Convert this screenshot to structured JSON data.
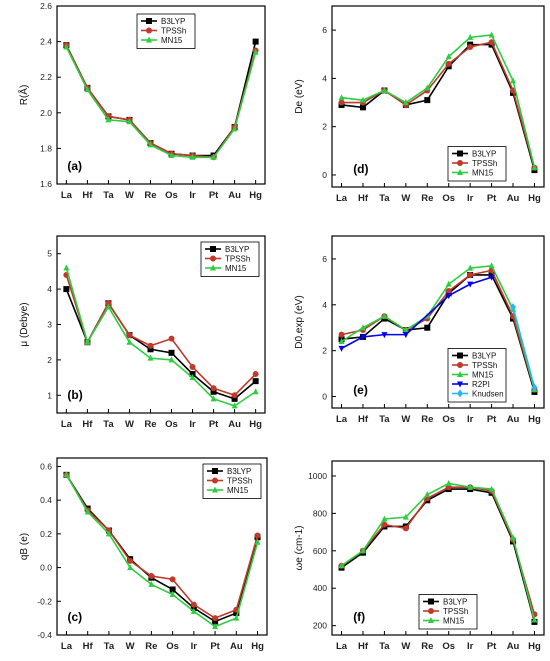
{
  "chart_data": [
    {
      "panel": "(a)",
      "type": "line",
      "categories": [
        "La",
        "Hf",
        "Ta",
        "W",
        "Re",
        "Os",
        "Ir",
        "Pt",
        "Au",
        "Hg"
      ],
      "ylabel": "R(Å)",
      "ylim": [
        1.6,
        2.6
      ],
      "yticks": [
        "1.6",
        "1.8",
        "2.0",
        "2.2",
        "2.4",
        "2.6"
      ],
      "legend_position": "top-left",
      "series": [
        {
          "name": "B3LYP",
          "values": [
            2.38,
            2.14,
            1.98,
            1.96,
            1.83,
            1.77,
            1.76,
            1.76,
            1.92,
            2.4
          ]
        },
        {
          "name": "TPSSh",
          "values": [
            2.38,
            2.14,
            1.98,
            1.96,
            1.83,
            1.77,
            1.76,
            1.75,
            1.92,
            2.35
          ]
        },
        {
          "name": "MN15",
          "values": [
            2.37,
            2.13,
            1.96,
            1.95,
            1.82,
            1.76,
            1.75,
            1.75,
            1.91,
            2.34
          ]
        }
      ]
    },
    {
      "panel": "(d)",
      "type": "line",
      "categories": [
        "La",
        "Hf",
        "Ta",
        "W",
        "Re",
        "Os",
        "Ir",
        "Pt",
        "Au",
        "Hg"
      ],
      "ylabel": "De (eV)",
      "ylim": [
        -0.5,
        7
      ],
      "yticks": [
        "0",
        "2",
        "4",
        "6"
      ],
      "legend_position": "bottom-right",
      "series": [
        {
          "name": "B3LYP",
          "values": [
            2.9,
            2.8,
            3.5,
            2.9,
            3.1,
            4.5,
            5.4,
            5.4,
            3.4,
            0.2
          ]
        },
        {
          "name": "TPSSh",
          "values": [
            3.0,
            3.0,
            3.5,
            2.9,
            3.5,
            4.6,
            5.3,
            5.5,
            3.5,
            0.3
          ]
        },
        {
          "name": "MN15",
          "values": [
            3.2,
            3.1,
            3.5,
            3.0,
            3.6,
            4.9,
            5.7,
            5.8,
            3.9,
            0.3
          ]
        }
      ]
    },
    {
      "panel": "(b)",
      "type": "line",
      "categories": [
        "La",
        "Hf",
        "Ta",
        "W",
        "Re",
        "Os",
        "Ir",
        "Pt",
        "Au",
        "Hg"
      ],
      "ylabel": "μ (Debye)",
      "ylim": [
        0.5,
        5.5
      ],
      "yticks": [
        "1",
        "2",
        "3",
        "4",
        "5"
      ],
      "legend_position": "top-right",
      "series": [
        {
          "name": "B3LYP",
          "values": [
            4.0,
            2.5,
            3.6,
            2.7,
            2.3,
            2.2,
            1.6,
            1.1,
            0.9,
            1.4
          ]
        },
        {
          "name": "TPSSh",
          "values": [
            4.4,
            2.5,
            3.6,
            2.7,
            2.4,
            2.6,
            1.8,
            1.2,
            1.0,
            1.6
          ]
        },
        {
          "name": "MN15",
          "values": [
            4.6,
            2.5,
            3.5,
            2.5,
            2.05,
            2.0,
            1.5,
            0.9,
            0.7,
            1.1
          ]
        }
      ]
    },
    {
      "panel": "(e)",
      "type": "line",
      "categories": [
        "La",
        "Hf",
        "Ta",
        "W",
        "Re",
        "Os",
        "Ir",
        "Pt",
        "Au",
        "Hg"
      ],
      "ylabel": "D0,exp (eV)",
      "ylim": [
        -0.5,
        7
      ],
      "yticks": [
        "0",
        "2",
        "4",
        "6"
      ],
      "legend_position": "bottom-right",
      "series": [
        {
          "name": "B3LYP",
          "values": [
            2.5,
            2.6,
            3.4,
            2.9,
            3.0,
            4.5,
            5.3,
            5.3,
            3.4,
            0.2
          ]
        },
        {
          "name": "TPSSh",
          "values": [
            2.7,
            2.9,
            3.5,
            2.9,
            3.4,
            4.6,
            5.3,
            5.5,
            3.5,
            0.3
          ]
        },
        {
          "name": "MN15",
          "values": [
            2.4,
            3.0,
            3.5,
            2.9,
            3.5,
            4.9,
            5.6,
            5.7,
            3.8,
            0.3
          ]
        },
        {
          "name": "R2PI",
          "values": [
            2.1,
            2.6,
            2.7,
            2.7,
            null,
            4.4,
            4.9,
            5.2,
            null,
            null
          ]
        },
        {
          "name": "Knudsen",
          "values": [
            null,
            null,
            null,
            null,
            null,
            null,
            null,
            null,
            3.9,
            0.4
          ]
        }
      ]
    },
    {
      "panel": "(c)",
      "type": "line",
      "categories": [
        "La",
        "Hf",
        "Ta",
        "W",
        "Re",
        "Os",
        "Ir",
        "Pt",
        "Au",
        "Hg"
      ],
      "ylabel": "qB (e)",
      "ylim": [
        -0.4,
        0.65
      ],
      "yticks": [
        "-0.4",
        "-0.2",
        "0.0",
        "0.2",
        "0.4",
        "0.6"
      ],
      "legend_position": "top-right",
      "series": [
        {
          "name": "B3LYP",
          "values": [
            0.55,
            0.35,
            0.22,
            0.05,
            -0.06,
            -0.13,
            -0.24,
            -0.32,
            -0.27,
            0.18
          ]
        },
        {
          "name": "TPSSh",
          "values": [
            0.55,
            0.34,
            0.22,
            0.04,
            -0.05,
            -0.07,
            -0.22,
            -0.3,
            -0.25,
            0.19
          ]
        },
        {
          "name": "MN15",
          "values": [
            0.55,
            0.33,
            0.2,
            0.0,
            -0.1,
            -0.16,
            -0.26,
            -0.35,
            -0.3,
            0.15
          ]
        }
      ]
    },
    {
      "panel": "(f)",
      "type": "line",
      "categories": [
        "La",
        "Hf",
        "Ta",
        "W",
        "Re",
        "Os",
        "Ir",
        "Pt",
        "Au",
        "Hg"
      ],
      "ylabel": "ωe (cm-1)",
      "ylim": [
        150,
        1080
      ],
      "yticks": [
        "200",
        "400",
        "600",
        "800",
        "1000"
      ],
      "legend_position": "bottom-center",
      "series": [
        {
          "name": "B3LYP",
          "values": [
            510,
            590,
            730,
            730,
            870,
            930,
            930,
            910,
            650,
            220
          ]
        },
        {
          "name": "TPSSh",
          "values": [
            520,
            600,
            740,
            720,
            880,
            940,
            940,
            920,
            660,
            260
          ]
        },
        {
          "name": "MN15",
          "values": [
            520,
            600,
            770,
            780,
            900,
            960,
            940,
            930,
            670,
            230
          ]
        }
      ]
    }
  ],
  "colors": {
    "B3LYP": "#000000",
    "TPSSh": "#c0392b",
    "MN15": "#2ecc40",
    "R2PI": "#0000ee",
    "Knudsen": "#29b6f6"
  }
}
